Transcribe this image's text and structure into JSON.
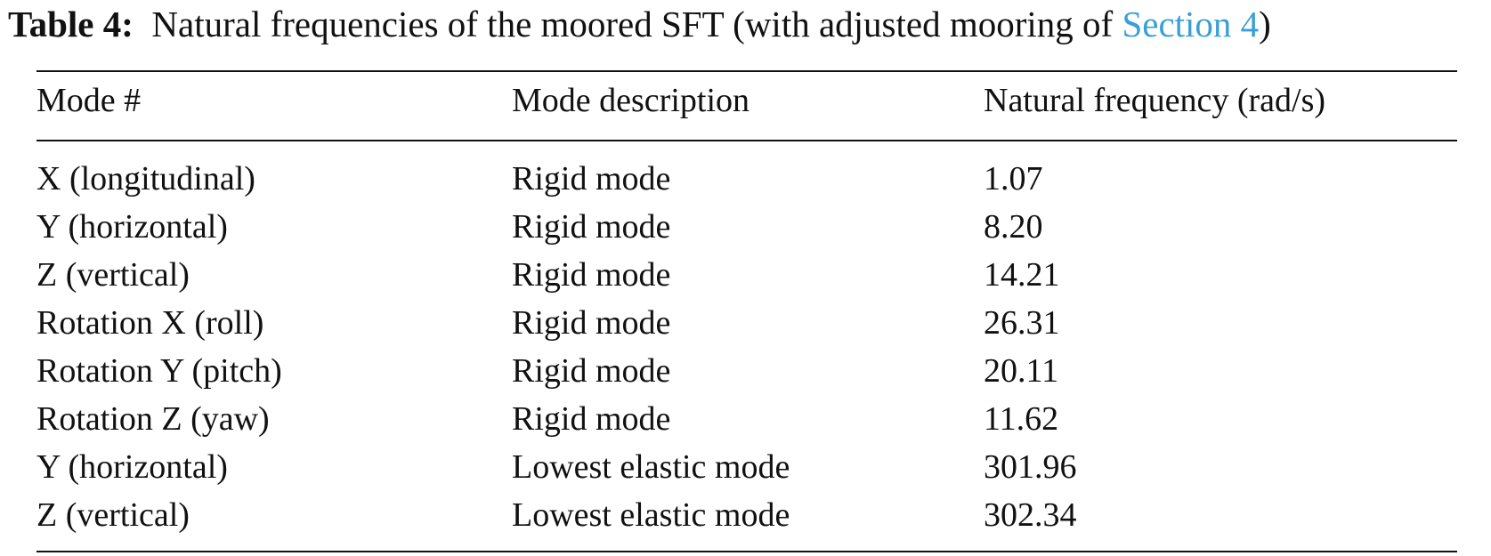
{
  "caption": {
    "label": "Table 4:",
    "text": "Natural frequencies of the moored SFT (with adjusted mooring of",
    "link": "Section 4",
    "close": ")"
  },
  "table": {
    "header": [
      "Mode #",
      "Mode description",
      "Natural frequency (rad/s)"
    ],
    "rows": [
      [
        "X (longitudinal)",
        "Rigid mode",
        "1.07"
      ],
      [
        "Y (horizontal)",
        "Rigid mode",
        "8.20"
      ],
      [
        "Z (vertical)",
        "Rigid mode",
        "14.21"
      ],
      [
        "Rotation X (roll)",
        "Rigid mode",
        "26.31"
      ],
      [
        "Rotation Y (pitch)",
        "Rigid mode",
        "20.11"
      ],
      [
        "Rotation Z (yaw)",
        "Rigid mode",
        "11.62"
      ],
      [
        "Y (horizontal)",
        "Lowest elastic mode",
        "301.96"
      ],
      [
        "Z (vertical)",
        "Lowest elastic mode",
        "302.34"
      ]
    ]
  }
}
